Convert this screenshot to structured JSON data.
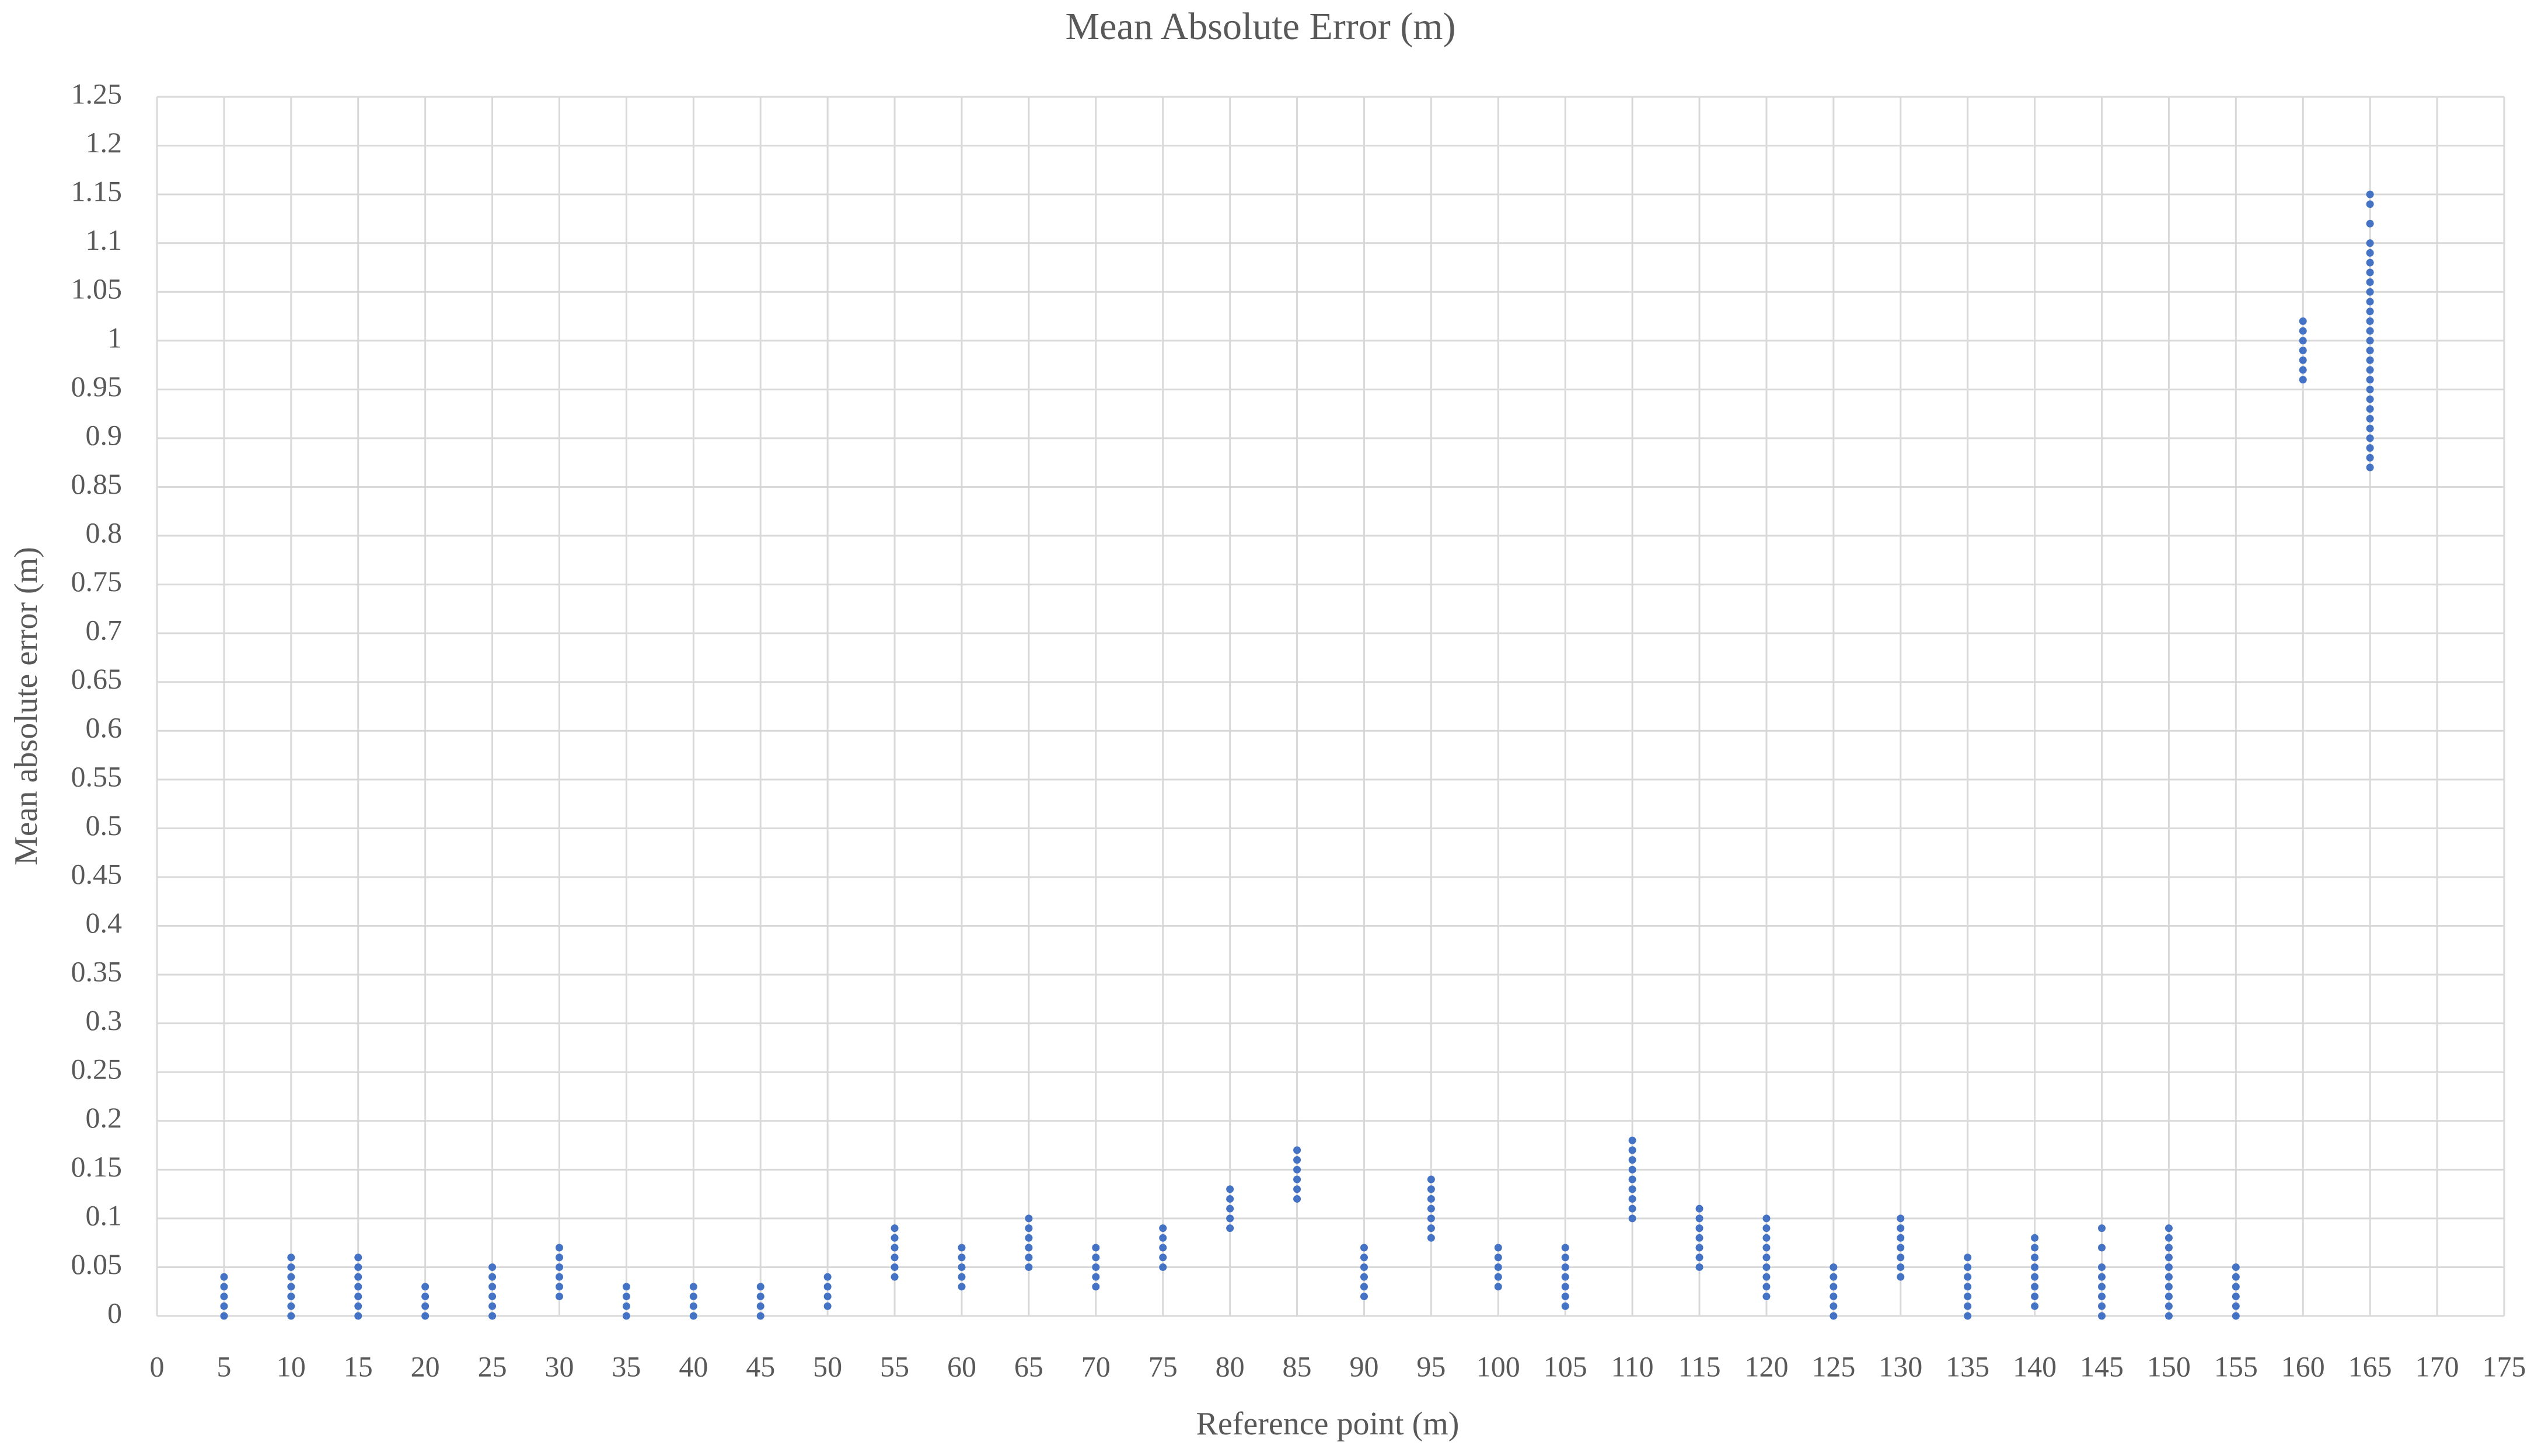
{
  "chart_data": {
    "type": "scatter",
    "title": "Mean Absolute Error  (m)",
    "x_label": "Reference point (m)",
    "y_label": "Mean absolute error (m)",
    "color": "#4472c4",
    "grid": true,
    "xlim": [
      0,
      175
    ],
    "xticks": [
      0,
      5,
      10,
      15,
      20,
      25,
      30,
      35,
      40,
      45,
      50,
      55,
      60,
      65,
      70,
      75,
      80,
      85,
      90,
      95,
      100,
      105,
      110,
      115,
      120,
      125,
      130,
      135,
      140,
      145,
      150,
      155,
      160,
      165,
      170,
      175
    ],
    "ylim": [
      0,
      1.25
    ],
    "yticks": [
      0,
      0.05,
      0.1,
      0.15,
      0.2,
      0.25,
      0.3,
      0.35,
      0.4,
      0.45,
      0.5,
      0.55,
      0.6,
      0.65,
      0.7,
      0.75,
      0.8,
      0.85,
      0.9,
      0.95,
      1,
      1.05,
      1.1,
      1.15,
      1.2,
      1.25
    ],
    "x": [
      5,
      5,
      5,
      5,
      5,
      10,
      10,
      10,
      10,
      10,
      10,
      10,
      15,
      15,
      15,
      15,
      15,
      15,
      15,
      20,
      20,
      20,
      20,
      25,
      25,
      25,
      25,
      25,
      25,
      30,
      30,
      30,
      30,
      30,
      30,
      35,
      35,
      35,
      35,
      40,
      40,
      40,
      40,
      45,
      45,
      45,
      45,
      50,
      50,
      50,
      50,
      55,
      55,
      55,
      55,
      55,
      55,
      60,
      60,
      60,
      60,
      60,
      65,
      65,
      65,
      65,
      65,
      65,
      70,
      70,
      70,
      70,
      70,
      75,
      75,
      75,
      75,
      75,
      80,
      80,
      80,
      80,
      80,
      85,
      85,
      85,
      85,
      85,
      85,
      90,
      90,
      90,
      90,
      90,
      90,
      95,
      95,
      95,
      95,
      95,
      95,
      95,
      100,
      100,
      100,
      100,
      100,
      105,
      105,
      105,
      105,
      105,
      105,
      105,
      110,
      110,
      110,
      110,
      110,
      110,
      110,
      110,
      110,
      115,
      115,
      115,
      115,
      115,
      115,
      115,
      120,
      120,
      120,
      120,
      120,
      120,
      120,
      120,
      120,
      125,
      125,
      125,
      125,
      125,
      125,
      130,
      130,
      130,
      130,
      130,
      130,
      130,
      135,
      135,
      135,
      135,
      135,
      135,
      135,
      140,
      140,
      140,
      140,
      140,
      140,
      140,
      140,
      145,
      145,
      145,
      145,
      145,
      145,
      145,
      145,
      150,
      150,
      150,
      150,
      150,
      150,
      150,
      150,
      150,
      150,
      155,
      155,
      155,
      155,
      155,
      155,
      160,
      160,
      160,
      160,
      160,
      160,
      160,
      165,
      165,
      165,
      165,
      165,
      165,
      165,
      165,
      165,
      165,
      165,
      165,
      165,
      165,
      165,
      165,
      165,
      165,
      165,
      165,
      165,
      165,
      165,
      165,
      165,
      165,
      165
    ],
    "values": [
      0,
      0.01,
      0.02,
      0.03,
      0.04,
      0,
      0.01,
      0.02,
      0.03,
      0.04,
      0.05,
      0.06,
      0,
      0.01,
      0.02,
      0.03,
      0.04,
      0.05,
      0.06,
      0,
      0.01,
      0.02,
      0.03,
      0,
      0.01,
      0.02,
      0.03,
      0.04,
      0.05,
      0.02,
      0.03,
      0.04,
      0.05,
      0.06,
      0.07,
      0,
      0.01,
      0.02,
      0.03,
      0,
      0.01,
      0.02,
      0.03,
      0,
      0.01,
      0.02,
      0.03,
      0.01,
      0.02,
      0.03,
      0.04,
      0.04,
      0.05,
      0.06,
      0.07,
      0.08,
      0.09,
      0.03,
      0.04,
      0.05,
      0.06,
      0.07,
      0.05,
      0.06,
      0.07,
      0.08,
      0.09,
      0.1,
      0.03,
      0.04,
      0.05,
      0.06,
      0.07,
      0.05,
      0.06,
      0.07,
      0.08,
      0.09,
      0.09,
      0.1,
      0.11,
      0.12,
      0.13,
      0.12,
      0.13,
      0.14,
      0.15,
      0.16,
      0.17,
      0.02,
      0.03,
      0.04,
      0.05,
      0.06,
      0.07,
      0.08,
      0.09,
      0.1,
      0.11,
      0.12,
      0.13,
      0.14,
      0.03,
      0.04,
      0.05,
      0.06,
      0.07,
      0.01,
      0.02,
      0.03,
      0.04,
      0.05,
      0.06,
      0.07,
      0.1,
      0.11,
      0.12,
      0.13,
      0.14,
      0.15,
      0.16,
      0.17,
      0.18,
      0.05,
      0.06,
      0.07,
      0.08,
      0.09,
      0.1,
      0.11,
      0.02,
      0.03,
      0.04,
      0.05,
      0.06,
      0.07,
      0.08,
      0.09,
      0.1,
      0,
      0.01,
      0.02,
      0.03,
      0.04,
      0.05,
      0.04,
      0.05,
      0.06,
      0.07,
      0.08,
      0.09,
      0.1,
      0,
      0.01,
      0.02,
      0.03,
      0.04,
      0.05,
      0.06,
      0.01,
      0.02,
      0.03,
      0.04,
      0.05,
      0.06,
      0.07,
      0.08,
      0,
      0.01,
      0.02,
      0.03,
      0.04,
      0.05,
      0.07,
      0.09,
      0,
      0.01,
      0.02,
      0.03,
      0.04,
      0.05,
      0.06,
      0.07,
      0.08,
      0.09,
      0,
      0.01,
      0.02,
      0.03,
      0.04,
      0.05,
      0.96,
      0.97,
      0.98,
      0.99,
      1,
      1.01,
      1.02,
      0.87,
      0.88,
      0.89,
      0.9,
      0.91,
      0.92,
      0.93,
      0.94,
      0.95,
      0.96,
      0.97,
      0.98,
      0.99,
      1,
      1.01,
      1.02,
      1.03,
      1.04,
      1.05,
      1.06,
      1.07,
      1.08,
      1.09,
      1.1,
      1.12,
      1.14,
      1.15
    ]
  }
}
